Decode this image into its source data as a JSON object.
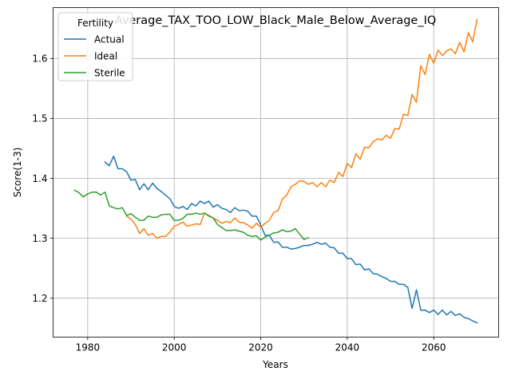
{
  "chart_data": {
    "type": "line",
    "title": "Average_TAX_TOO_LOW_Black_Male_Below_Average_IQ",
    "xlabel": "Years",
    "ylabel": "Score(1-3)",
    "xlim": [
      1972,
      2075
    ],
    "ylim": [
      1.135,
      1.685
    ],
    "xticks": [
      1980,
      2000,
      2020,
      2040,
      2060
    ],
    "yticks": [
      1.2,
      1.3,
      1.4,
      1.5,
      1.6
    ],
    "grid": true,
    "legend": {
      "title": "Fertility",
      "placement": "top-left"
    },
    "series": [
      {
        "name": "Actual",
        "color": "#1f77b4",
        "x": [
          1984,
          1985,
          1986,
          1987,
          1988,
          1989,
          1990,
          1991,
          1992,
          1993,
          1994,
          1995,
          1996,
          1997,
          1998,
          1999,
          2000,
          2001,
          2002,
          2003,
          2004,
          2005,
          2006,
          2007,
          2008,
          2009,
          2010,
          2011,
          2012,
          2013,
          2014,
          2015,
          2016,
          2017,
          2018,
          2019,
          2020,
          2021,
          2022,
          2023,
          2024,
          2025,
          2026,
          2027,
          2028,
          2029,
          2030,
          2031,
          2032,
          2033,
          2034,
          2035,
          2036,
          2037,
          2038,
          2039,
          2040,
          2041,
          2042,
          2043,
          2044,
          2045,
          2046,
          2047,
          2048,
          2049,
          2050,
          2051,
          2052,
          2053,
          2054,
          2055,
          2056,
          2057,
          2058,
          2059,
          2060,
          2061,
          2062,
          2063,
          2064,
          2065,
          2066,
          2067,
          2068,
          2069,
          2070
        ],
        "values": [
          1.427,
          1.421,
          1.437,
          1.416,
          1.416,
          1.411,
          1.397,
          1.398,
          1.381,
          1.391,
          1.381,
          1.392,
          1.383,
          1.378,
          1.372,
          1.366,
          1.353,
          1.35,
          1.353,
          1.348,
          1.358,
          1.354,
          1.362,
          1.358,
          1.362,
          1.352,
          1.356,
          1.35,
          1.348,
          1.343,
          1.351,
          1.346,
          1.347,
          1.345,
          1.337,
          1.337,
          1.322,
          1.305,
          1.305,
          1.293,
          1.294,
          1.285,
          1.285,
          1.282,
          1.283,
          1.285,
          1.288,
          1.288,
          1.29,
          1.293,
          1.29,
          1.292,
          1.285,
          1.284,
          1.275,
          1.275,
          1.266,
          1.266,
          1.256,
          1.257,
          1.247,
          1.249,
          1.241,
          1.24,
          1.236,
          1.233,
          1.228,
          1.228,
          1.223,
          1.223,
          1.218,
          1.183,
          1.214,
          1.18,
          1.18,
          1.176,
          1.18,
          1.173,
          1.18,
          1.172,
          1.178,
          1.171,
          1.174,
          1.168,
          1.166,
          1.162,
          1.159
        ]
      },
      {
        "name": "Ideal",
        "color": "#ff7f0e",
        "x": [
          1989,
          1990,
          1991,
          1992,
          1993,
          1994,
          1995,
          1996,
          1997,
          1998,
          1999,
          2000,
          2001,
          2002,
          2003,
          2004,
          2005,
          2006,
          2007,
          2008,
          2009,
          2010,
          2011,
          2012,
          2013,
          2014,
          2015,
          2016,
          2017,
          2018,
          2019,
          2020,
          2021,
          2022,
          2023,
          2024,
          2025,
          2026,
          2027,
          2028,
          2029,
          2030,
          2031,
          2032,
          2033,
          2034,
          2035,
          2036,
          2037,
          2038,
          2039,
          2040,
          2041,
          2042,
          2043,
          2044,
          2045,
          2046,
          2047,
          2048,
          2049,
          2050,
          2051,
          2052,
          2053,
          2054,
          2055,
          2056,
          2057,
          2058,
          2059,
          2060,
          2061,
          2062,
          2063,
          2064,
          2065,
          2066,
          2067,
          2068,
          2069,
          2070
        ],
        "values": [
          1.337,
          1.332,
          1.323,
          1.308,
          1.316,
          1.305,
          1.308,
          1.3,
          1.303,
          1.303,
          1.31,
          1.32,
          1.323,
          1.327,
          1.32,
          1.322,
          1.324,
          1.323,
          1.342,
          1.338,
          1.334,
          1.33,
          1.325,
          1.328,
          1.326,
          1.334,
          1.327,
          1.326,
          1.322,
          1.317,
          1.325,
          1.318,
          1.325,
          1.33,
          1.343,
          1.346,
          1.365,
          1.372,
          1.386,
          1.39,
          1.396,
          1.395,
          1.39,
          1.393,
          1.386,
          1.393,
          1.386,
          1.397,
          1.393,
          1.41,
          1.403,
          1.425,
          1.418,
          1.441,
          1.432,
          1.452,
          1.451,
          1.461,
          1.466,
          1.464,
          1.472,
          1.467,
          1.483,
          1.482,
          1.507,
          1.505,
          1.54,
          1.527,
          1.588,
          1.573,
          1.607,
          1.592,
          1.614,
          1.605,
          1.613,
          1.616,
          1.608,
          1.627,
          1.611,
          1.643,
          1.628,
          1.665
        ]
      },
      {
        "name": "Sterile",
        "color": "#2ca02c",
        "x": [
          1977,
          1978,
          1979,
          1980,
          1981,
          1982,
          1983,
          1984,
          1985,
          1986,
          1987,
          1988,
          1989,
          1990,
          1991,
          1992,
          1993,
          1994,
          1995,
          1996,
          1997,
          1998,
          1999,
          2000,
          2001,
          2002,
          2003,
          2004,
          2005,
          2006,
          2007,
          2008,
          2009,
          2010,
          2011,
          2012,
          2013,
          2014,
          2015,
          2016,
          2017,
          2018,
          2019,
          2020,
          2021,
          2022,
          2023,
          2024,
          2025,
          2026,
          2027,
          2028,
          2029,
          2030,
          2031
        ],
        "values": [
          1.38,
          1.376,
          1.369,
          1.374,
          1.377,
          1.377,
          1.372,
          1.377,
          1.354,
          1.351,
          1.349,
          1.351,
          1.338,
          1.341,
          1.335,
          1.33,
          1.33,
          1.337,
          1.335,
          1.335,
          1.339,
          1.34,
          1.34,
          1.33,
          1.33,
          1.333,
          1.34,
          1.34,
          1.342,
          1.34,
          1.342,
          1.337,
          1.334,
          1.323,
          1.318,
          1.313,
          1.313,
          1.314,
          1.312,
          1.31,
          1.305,
          1.303,
          1.304,
          1.297,
          1.302,
          1.305,
          1.309,
          1.31,
          1.314,
          1.311,
          1.312,
          1.316,
          1.307,
          1.298,
          1.301
        ]
      }
    ]
  }
}
